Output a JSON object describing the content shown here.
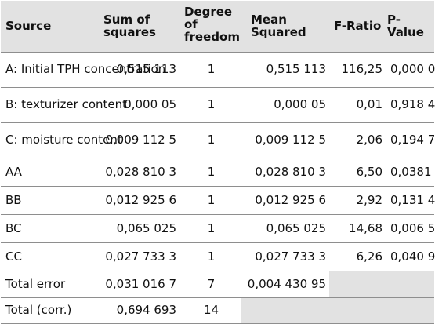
{
  "table": {
    "headers": {
      "source": "Source",
      "sum": "Sum of squares",
      "df": "Degree of freedom",
      "mean": "Mean Squared",
      "fratio": "F-Ratio",
      "pvalue": "P-Value"
    },
    "rows": [
      {
        "source": "A: Initial TPH concentration",
        "sum": "0,515 113",
        "df": "1",
        "mean": "0,515 113",
        "fratio": "116,25",
        "pvalue": "0,000 0"
      },
      {
        "source": "B: texturizer content",
        "sum": "0,000 05",
        "df": "1",
        "mean": "0,000 05",
        "fratio": "0,01",
        "pvalue": "0,918 4"
      },
      {
        "source": "C: moisture content",
        "sum": "0,009 112 5",
        "df": "1",
        "mean": "0,009 112 5",
        "fratio": "2,06",
        "pvalue": "0,194 7"
      },
      {
        "source": "AA",
        "sum": "0,028 810 3",
        "df": "1",
        "mean": "0,028 810 3",
        "fratio": "6,50",
        "pvalue": "0,0381"
      },
      {
        "source": "BB",
        "sum": "0,012 925 6",
        "df": "1",
        "mean": "0,012 925 6",
        "fratio": "2,92",
        "pvalue": "0,131 4"
      },
      {
        "source": "BC",
        "sum": "0,065 025",
        "df": "1",
        "mean": "0,065 025",
        "fratio": "14,68",
        "pvalue": "0,006 5"
      },
      {
        "source": "CC",
        "sum": "0,027 733 3",
        "df": "1",
        "mean": "0,027 733 3",
        "fratio": "6,26",
        "pvalue": "0,040 9"
      },
      {
        "source": "Total error",
        "sum": "0,031 016 7",
        "df": "7",
        "mean": "0,004 430 95"
      },
      {
        "source": "Total (corr.)",
        "sum": "0,694 693",
        "df": "14"
      }
    ]
  },
  "colors": {
    "header_bg": "#e2e2e2",
    "empty_cell_bg": "#e2e2e2",
    "rule": "#8e8e8e"
  }
}
